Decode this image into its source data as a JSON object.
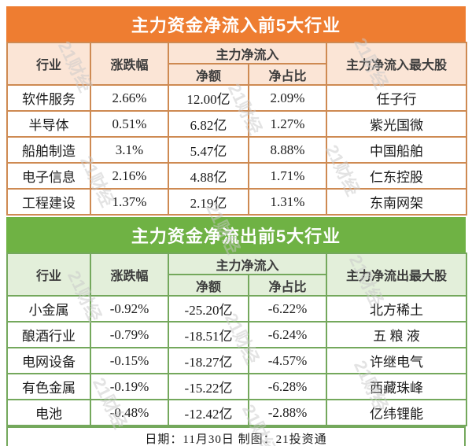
{
  "colors": {
    "inflow_accent": "#EE7D31",
    "inflow_header_bg": "#FBE5D6",
    "inflow_border": "#CE8A52",
    "outflow_accent": "#6FB244",
    "outflow_header_bg": "#E3EFDA",
    "outflow_border": "#74A85C",
    "watermark_gray": "#C9C9C9"
  },
  "watermark": {
    "text": "21财经"
  },
  "chart_data": [
    {
      "type": "table",
      "title": "主力资金净流入前5大行业",
      "header": {
        "industry": "行业",
        "change": "涨跌幅",
        "group": "主力净流入",
        "amount": "净额",
        "ratio": "净占比",
        "top_stock": "主力净流入最大股"
      },
      "columns": [
        "行业",
        "涨跌幅",
        "主力净流入-净额",
        "主力净流入-净占比",
        "主力净流入最大股"
      ],
      "rows": [
        [
          "软件服务",
          "2.66%",
          "12.00亿",
          "2.09%",
          "任子行"
        ],
        [
          "半导体",
          "0.51%",
          "6.82亿",
          "1.27%",
          "紫光国微"
        ],
        [
          "船舶制造",
          "3.1%",
          "5.47亿",
          "8.88%",
          "中国船舶"
        ],
        [
          "电子信息",
          "2.16%",
          "4.88亿",
          "1.71%",
          "仁东控股"
        ],
        [
          "工程建设",
          "1.37%",
          "2.19亿",
          "1.31%",
          "东南网架"
        ]
      ]
    },
    {
      "type": "table",
      "title": "主力资金净流出前5大行业",
      "header": {
        "industry": "行业",
        "change": "涨跌幅",
        "group": "主力净流入",
        "amount": "净额",
        "ratio": "净占比",
        "top_stock": "主力净流出最大股"
      },
      "columns": [
        "行业",
        "涨跌幅",
        "主力净流入-净额",
        "主力净流入-净占比",
        "主力净流出最大股"
      ],
      "rows": [
        [
          "小金属",
          "-0.92%",
          "-25.20亿",
          "-6.22%",
          "北方稀土"
        ],
        [
          "酿酒行业",
          "-0.79%",
          "-18.51亿",
          "-6.24%",
          "五 粮 液"
        ],
        [
          "电网设备",
          "-0.15%",
          "-18.27亿",
          "-4.57%",
          "许继电气"
        ],
        [
          "有色金属",
          "-0.19%",
          "-15.22亿",
          "-6.28%",
          "西藏珠峰"
        ],
        [
          "电池",
          "-0.48%",
          "-12.42亿",
          "-2.88%",
          "亿纬锂能"
        ]
      ]
    }
  ],
  "footer": {
    "text": "日期：11月30日  制图：21投资通"
  }
}
